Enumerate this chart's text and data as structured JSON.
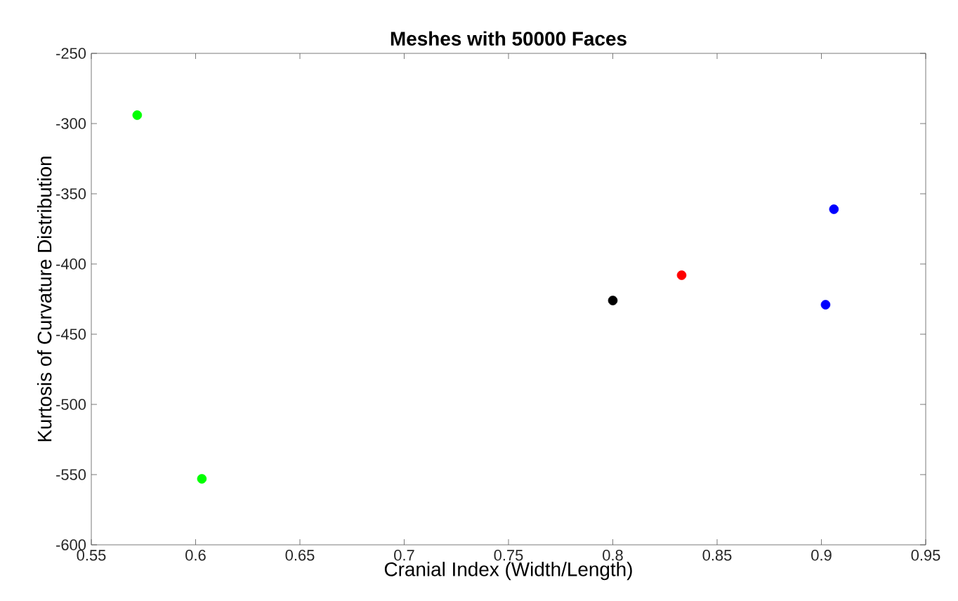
{
  "chart_data": {
    "type": "scatter",
    "title": "Meshes with 50000 Faces",
    "xlabel": "Cranial Index (Width/Length)",
    "ylabel": "Kurtosis of Curvature Distribution",
    "x": [
      0.572,
      0.603,
      0.8,
      0.833,
      0.906,
      0.902
    ],
    "values": [
      -294,
      -553,
      -426,
      -408,
      -361,
      -429
    ],
    "colors": [
      "#00ff00",
      "#00ff00",
      "#000000",
      "#ff0000",
      "#0000ff",
      "#0000ff"
    ],
    "marker": "circle",
    "xlim": [
      0.55,
      0.95
    ],
    "xticks": [
      0.55,
      0.6,
      0.65,
      0.7,
      0.75,
      0.8,
      0.85,
      0.9,
      0.95
    ],
    "ylim": [
      -600,
      -250
    ],
    "yticks": [
      -600,
      -550,
      -500,
      -450,
      -400,
      -350,
      -300,
      -250
    ]
  }
}
